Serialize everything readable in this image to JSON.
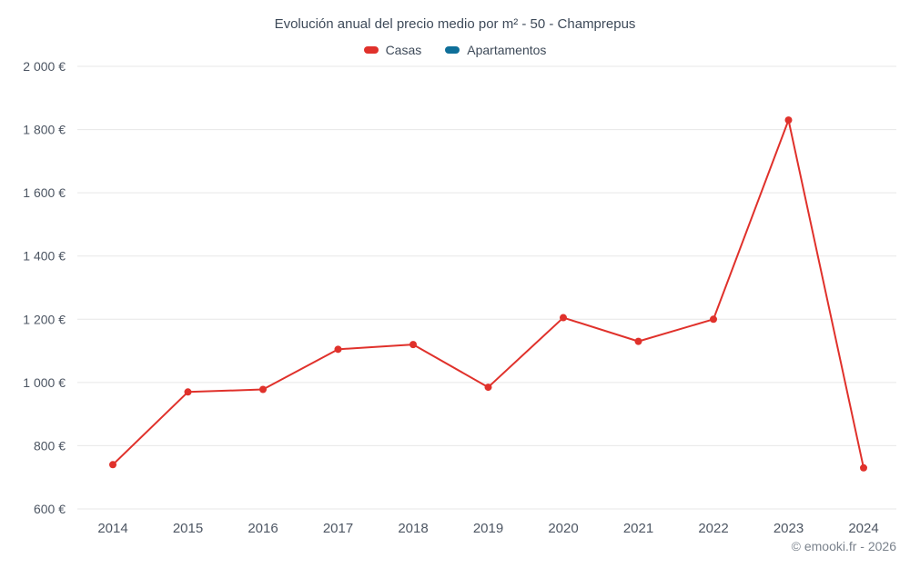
{
  "title": "Evolución anual del precio medio por m² - 50 - Champrepus",
  "footer": "© emooki.fr - 2026",
  "legend": [
    {
      "label": "Casas",
      "color": "#e0312b"
    },
    {
      "label": "Apartamentos",
      "color": "#0f6f99"
    }
  ],
  "chart_data": {
    "type": "line",
    "title": "Evolución anual del precio medio por m² - 50 - Champrepus",
    "categories": [
      "2014",
      "2015",
      "2016",
      "2017",
      "2018",
      "2019",
      "2020",
      "2021",
      "2022",
      "2023",
      "2024"
    ],
    "series": [
      {
        "name": "Casas",
        "color": "#e0312b",
        "values": [
          740,
          970,
          978,
          1105,
          1120,
          985,
          1205,
          1130,
          1200,
          1830,
          730
        ]
      },
      {
        "name": "Apartamentos",
        "color": "#0f6f99",
        "values": []
      }
    ],
    "xlabel": "",
    "ylabel": "",
    "ytick_suffix": " €",
    "ytick_step": 200,
    "ylim": [
      600,
      2000
    ],
    "grid": "horizontal",
    "legend_position": "top",
    "grid_color": "#e7e7e7",
    "axis_label_color": "#4d5663"
  }
}
